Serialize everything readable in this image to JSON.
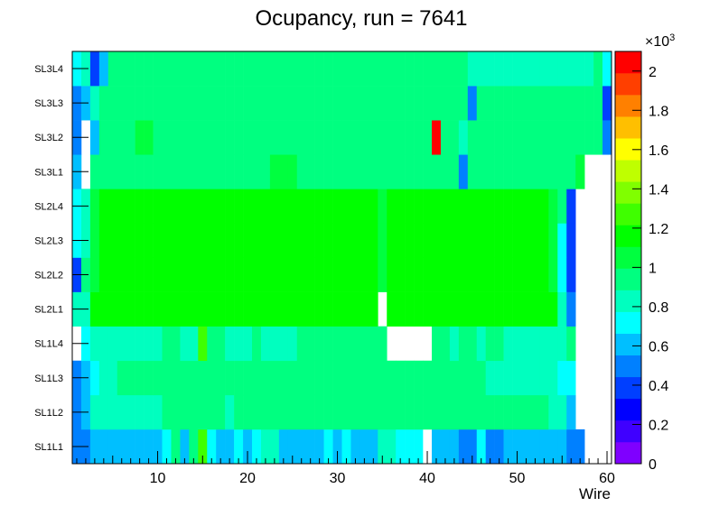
{
  "chart_data": {
    "type": "heatmap",
    "title": "Ocupancy, run = 7641",
    "xlabel": "Wire",
    "ylabel": "",
    "x_range": [
      0.5,
      60.5
    ],
    "x_ticks": [
      10,
      20,
      30,
      40,
      50,
      60
    ],
    "y_categories": [
      "SL1L1",
      "SL1L2",
      "SL1L3",
      "SL1L4",
      "SL2L1",
      "SL2L2",
      "SL2L3",
      "SL2L4",
      "SL3L1",
      "SL3L2",
      "SL3L3",
      "SL3L4"
    ],
    "z_range": [
      0,
      2100
    ],
    "z_exponent_label": "×10",
    "z_exponent_power": "3",
    "z_ticks": [
      {
        "value": 0,
        "label": "0"
      },
      {
        "value": 200,
        "label": "0.2"
      },
      {
        "value": 400,
        "label": "0.4"
      },
      {
        "value": 600,
        "label": "0.6"
      },
      {
        "value": 800,
        "label": "0.8"
      },
      {
        "value": 1000,
        "label": "1"
      },
      {
        "value": 1200,
        "label": "1.2"
      },
      {
        "value": 1400,
        "label": "1.4"
      },
      {
        "value": 1600,
        "label": "1.6"
      },
      {
        "value": 1800,
        "label": "1.8"
      },
      {
        "value": 2000,
        "label": "2"
      }
    ],
    "palette": [
      "#7f00ff",
      "#3f00ff",
      "#0000ff",
      "#003fff",
      "#0080ff",
      "#00bfff",
      "#00ffff",
      "#00ffbf",
      "#00ff80",
      "#00ff3f",
      "#00ff00",
      "#3fff00",
      "#80ff00",
      "#bfff00",
      "#ffff00",
      "#ffbf00",
      "#ff8000",
      "#ff3f00",
      "#ff0000"
    ],
    "empty_value": 0,
    "rows": [
      [
        520,
        520,
        650,
        650,
        650,
        650,
        650,
        650,
        650,
        650,
        720,
        950,
        650,
        950,
        1250,
        750,
        650,
        650,
        720,
        650,
        720,
        820,
        820,
        650,
        650,
        650,
        650,
        650,
        720,
        650,
        720,
        650,
        650,
        650,
        820,
        820,
        720,
        720,
        720,
        0,
        650,
        650,
        650,
        520,
        520,
        720,
        520,
        520,
        650,
        650,
        650,
        650,
        650,
        650,
        650,
        520,
        520,
        0,
        0,
        0
      ],
      [
        520,
        600,
        780,
        780,
        780,
        780,
        780,
        780,
        780,
        800,
        900,
        900,
        900,
        900,
        900,
        900,
        900,
        880,
        900,
        900,
        900,
        900,
        900,
        900,
        900,
        900,
        900,
        900,
        900,
        900,
        900,
        900,
        900,
        900,
        900,
        900,
        900,
        900,
        900,
        900,
        900,
        900,
        900,
        900,
        900,
        900,
        900,
        900,
        900,
        900,
        900,
        900,
        900,
        800,
        800,
        600,
        0,
        0,
        0,
        0
      ],
      [
        520,
        600,
        720,
        850,
        850,
        900,
        900,
        900,
        900,
        900,
        900,
        900,
        900,
        900,
        900,
        900,
        900,
        900,
        900,
        900,
        900,
        900,
        900,
        900,
        900,
        900,
        900,
        900,
        900,
        900,
        900,
        900,
        900,
        900,
        900,
        900,
        900,
        900,
        900,
        900,
        900,
        900,
        900,
        900,
        900,
        900,
        800,
        800,
        800,
        800,
        800,
        800,
        800,
        800,
        700,
        700,
        0,
        0,
        0,
        0
      ],
      [
        0,
        700,
        850,
        850,
        850,
        850,
        850,
        850,
        850,
        850,
        900,
        900,
        850,
        850,
        1300,
        900,
        900,
        850,
        850,
        850,
        900,
        850,
        850,
        850,
        850,
        900,
        900,
        900,
        900,
        900,
        900,
        900,
        900,
        900,
        900,
        0,
        0,
        0,
        0,
        0,
        900,
        900,
        850,
        900,
        900,
        850,
        900,
        900,
        850,
        850,
        850,
        850,
        850,
        850,
        850,
        900,
        0,
        0,
        0,
        0
      ],
      [
        780,
        850,
        1150,
        1150,
        1150,
        1150,
        1150,
        1150,
        1150,
        1150,
        1150,
        1150,
        1150,
        1150,
        1150,
        1150,
        1150,
        1150,
        1150,
        1150,
        1150,
        1150,
        1150,
        1150,
        1150,
        1150,
        1150,
        1150,
        1150,
        1150,
        1150,
        1150,
        1150,
        1150,
        0,
        1150,
        1150,
        1150,
        1150,
        1150,
        1150,
        1150,
        1150,
        1150,
        1150,
        1150,
        1150,
        1150,
        1150,
        1150,
        1150,
        1150,
        1150,
        1150,
        850,
        450,
        0,
        0,
        0,
        0
      ],
      [
        400,
        900,
        1100,
        1150,
        1150,
        1150,
        1150,
        1150,
        1150,
        1150,
        1150,
        1150,
        1150,
        1150,
        1150,
        1150,
        1150,
        1150,
        1150,
        1150,
        1150,
        1150,
        1150,
        1150,
        1150,
        1150,
        1150,
        1150,
        1150,
        1150,
        1150,
        1150,
        1150,
        1150,
        1050,
        1150,
        1150,
        1150,
        1150,
        1150,
        1150,
        1150,
        1150,
        1150,
        1150,
        1150,
        1150,
        1150,
        1150,
        1150,
        1150,
        1150,
        1150,
        1050,
        750,
        400,
        0,
        0,
        0,
        0
      ],
      [
        700,
        850,
        1100,
        1150,
        1150,
        1150,
        1150,
        1150,
        1150,
        1150,
        1150,
        1150,
        1150,
        1150,
        1150,
        1150,
        1150,
        1150,
        1150,
        1150,
        1150,
        1150,
        1150,
        1150,
        1150,
        1150,
        1150,
        1150,
        1150,
        1150,
        1150,
        1150,
        1150,
        1150,
        1050,
        1150,
        1150,
        1150,
        1150,
        1150,
        1150,
        1150,
        1150,
        1150,
        1150,
        1150,
        1150,
        1150,
        1150,
        1150,
        1150,
        1150,
        1150,
        1050,
        700,
        400,
        0,
        0,
        0,
        0
      ],
      [
        700,
        850,
        1100,
        1150,
        1150,
        1150,
        1150,
        1150,
        1150,
        1150,
        1150,
        1150,
        1150,
        1150,
        1150,
        1150,
        1150,
        1150,
        1150,
        1150,
        1150,
        1150,
        1150,
        1150,
        1150,
        1150,
        1150,
        1150,
        1150,
        1150,
        1150,
        1150,
        1150,
        1150,
        1050,
        1150,
        1150,
        1150,
        1150,
        1150,
        1150,
        1150,
        1150,
        1150,
        1150,
        1150,
        1150,
        1150,
        1150,
        1150,
        1150,
        1150,
        1150,
        1050,
        950,
        400,
        0,
        0,
        0,
        0
      ],
      [
        650,
        0,
        900,
        950,
        950,
        950,
        950,
        950,
        950,
        950,
        900,
        900,
        900,
        950,
        950,
        950,
        950,
        950,
        950,
        950,
        950,
        950,
        1050,
        1050,
        1050,
        950,
        950,
        950,
        950,
        950,
        950,
        950,
        950,
        950,
        950,
        950,
        950,
        950,
        950,
        950,
        950,
        950,
        950,
        500,
        950,
        900,
        900,
        900,
        900,
        900,
        900,
        900,
        900,
        900,
        900,
        900,
        1000,
        0,
        0,
        0
      ],
      [
        550,
        0,
        600,
        950,
        950,
        950,
        950,
        1050,
        1050,
        950,
        950,
        950,
        950,
        950,
        950,
        950,
        950,
        950,
        950,
        950,
        950,
        950,
        950,
        950,
        950,
        950,
        950,
        950,
        950,
        950,
        950,
        950,
        950,
        950,
        950,
        950,
        950,
        950,
        950,
        950,
        2100,
        950,
        950,
        850,
        950,
        950,
        950,
        950,
        950,
        950,
        950,
        950,
        950,
        950,
        950,
        950,
        950,
        950,
        950,
        500
      ],
      [
        450,
        600,
        850,
        950,
        950,
        950,
        950,
        950,
        950,
        950,
        950,
        950,
        950,
        950,
        950,
        950,
        950,
        950,
        950,
        950,
        950,
        950,
        950,
        950,
        950,
        950,
        950,
        950,
        950,
        950,
        950,
        950,
        950,
        950,
        950,
        950,
        950,
        950,
        950,
        950,
        950,
        950,
        950,
        950,
        500,
        950,
        950,
        950,
        950,
        950,
        950,
        950,
        950,
        950,
        950,
        950,
        950,
        950,
        950,
        400
      ],
      [
        750,
        850,
        400,
        600,
        950,
        950,
        950,
        950,
        950,
        950,
        950,
        950,
        950,
        950,
        950,
        950,
        950,
        950,
        950,
        950,
        950,
        950,
        950,
        950,
        950,
        950,
        950,
        950,
        950,
        950,
        950,
        950,
        950,
        950,
        950,
        950,
        950,
        950,
        950,
        950,
        950,
        950,
        950,
        950,
        850,
        850,
        850,
        850,
        850,
        850,
        850,
        850,
        850,
        850,
        850,
        850,
        850,
        850,
        950,
        750
      ]
    ]
  }
}
